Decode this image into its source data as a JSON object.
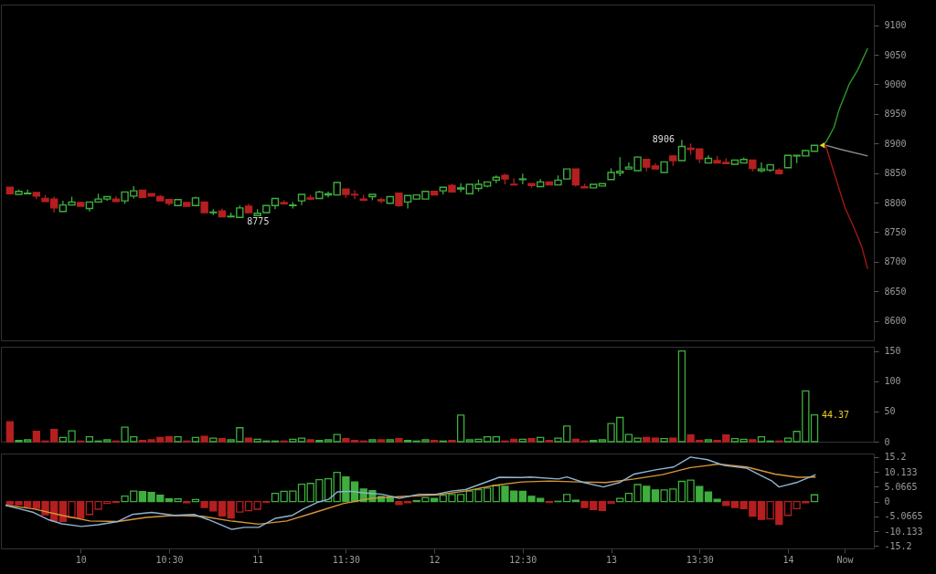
{
  "chart_data": [
    {
      "type": "candlestick",
      "tick_labels": "y",
      "xlim": [
        9.575,
        14.46
      ],
      "ylim": [
        8567,
        9135
      ],
      "yticks": [
        8600,
        8650,
        8700,
        8750,
        8800,
        8850,
        8900,
        8950,
        9000,
        9050,
        9100
      ],
      "x": [
        9.6,
        9.65,
        9.7,
        9.75,
        9.8,
        9.85,
        9.9,
        9.95,
        10,
        10.05,
        10.1,
        10.15,
        10.2,
        10.25,
        10.3,
        10.35,
        10.4,
        10.45,
        10.5,
        10.55,
        10.6,
        10.65,
        10.7,
        10.75,
        10.8,
        10.85,
        10.9,
        10.95,
        11,
        11.05,
        11.1,
        11.15,
        11.2,
        11.25,
        11.3,
        11.35,
        11.4,
        11.45,
        11.5,
        11.55,
        11.6,
        11.65,
        11.7,
        11.75,
        11.8,
        11.85,
        11.9,
        11.95,
        12,
        12.05,
        12.1,
        12.15,
        12.2,
        12.25,
        12.3,
        12.35,
        12.4,
        12.45,
        12.5,
        12.55,
        12.6,
        12.65,
        12.7,
        12.75,
        12.8,
        12.85,
        12.9,
        12.95,
        13,
        13.05,
        13.1,
        13.15,
        13.2,
        13.25,
        13.3,
        13.35,
        13.4,
        13.45,
        13.5,
        13.55,
        13.6,
        13.65,
        13.7,
        13.75,
        13.8,
        13.85,
        13.9,
        13.95,
        14,
        14.05,
        14.1,
        14.15
      ],
      "ohlc": [
        [
          8826,
          8826,
          8815,
          8815
        ],
        [
          8814,
          8822,
          8814,
          8819
        ],
        [
          8815,
          8822,
          8815,
          8816
        ],
        [
          8817,
          8817,
          8806,
          8811
        ],
        [
          8807,
          8813,
          8802,
          8802
        ],
        [
          8806,
          8810,
          8783,
          8791
        ],
        [
          8785,
          8803,
          8785,
          8796
        ],
        [
          8796,
          8810,
          8796,
          8801
        ],
        [
          8800,
          8802,
          8794,
          8794
        ],
        [
          8790,
          8801,
          8785,
          8801
        ],
        [
          8801,
          8815,
          8801,
          8806
        ],
        [
          8806,
          8810,
          8803,
          8810
        ],
        [
          8806,
          8811,
          8802,
          8802
        ],
        [
          8803,
          8818,
          8798,
          8818
        ],
        [
          8811,
          8828,
          8807,
          8820
        ],
        [
          8821,
          8821,
          8809,
          8809
        ],
        [
          8815,
          8815,
          8811,
          8811
        ],
        [
          8810,
          8813,
          8803,
          8803
        ],
        [
          8805,
          8805,
          8795,
          8799
        ],
        [
          8795,
          8805,
          8795,
          8805
        ],
        [
          8800,
          8800,
          8794,
          8794
        ],
        [
          8795,
          8810,
          8795,
          8808
        ],
        [
          8801,
          8801,
          8783,
          8783
        ],
        [
          8783,
          8789,
          8779,
          8784
        ],
        [
          8786,
          8790,
          8776,
          8776
        ],
        [
          8776,
          8783,
          8776,
          8777
        ],
        [
          8775,
          8795,
          8775,
          8791
        ],
        [
          8794,
          8798,
          8783,
          8783
        ],
        [
          8778,
          8789,
          8778,
          8782
        ],
        [
          8783,
          8795,
          8783,
          8795
        ],
        [
          8795,
          8807,
          8789,
          8807
        ],
        [
          8800,
          8804,
          8798,
          8798
        ],
        [
          8795,
          8801,
          8790,
          8796
        ],
        [
          8803,
          8814,
          8796,
          8814
        ],
        [
          8808,
          8813,
          8804,
          8806
        ],
        [
          8807,
          8820,
          8807,
          8818
        ],
        [
          8813,
          8819,
          8809,
          8815
        ],
        [
          8813,
          8834,
          8813,
          8834
        ],
        [
          8823,
          8823,
          8808,
          8814
        ],
        [
          8814,
          8821,
          8806,
          8813
        ],
        [
          8806,
          8813,
          8804,
          8804
        ],
        [
          8810,
          8814,
          8804,
          8814
        ],
        [
          8805,
          8808,
          8799,
          8803
        ],
        [
          8799,
          8810,
          8799,
          8810
        ],
        [
          8816,
          8816,
          8793,
          8795
        ],
        [
          8801,
          8812,
          8790,
          8812
        ],
        [
          8806,
          8813,
          8806,
          8813
        ],
        [
          8806,
          8819,
          8806,
          8819
        ],
        [
          8819,
          8819,
          8813,
          8813
        ],
        [
          8820,
          8826,
          8814,
          8826
        ],
        [
          8829,
          8832,
          8818,
          8818
        ],
        [
          8823,
          8833,
          8818,
          8825
        ],
        [
          8815,
          8831,
          8815,
          8831
        ],
        [
          8824,
          8839,
          8819,
          8831
        ],
        [
          8828,
          8835,
          8826,
          8835
        ],
        [
          8838,
          8846,
          8833,
          8843
        ],
        [
          8846,
          8849,
          8831,
          8840
        ],
        [
          8831,
          8841,
          8830,
          8830
        ],
        [
          8839,
          8849,
          8831,
          8840
        ],
        [
          8832,
          8832,
          8825,
          8829
        ],
        [
          8827,
          8840,
          8827,
          8835
        ],
        [
          8835,
          8835,
          8830,
          8830
        ],
        [
          8830,
          8846,
          8830,
          8838
        ],
        [
          8840,
          8857,
          8840,
          8857
        ],
        [
          8857,
          8857,
          8827,
          8830
        ],
        [
          8827,
          8832,
          8825,
          8825
        ],
        [
          8825,
          8831,
          8825,
          8831
        ],
        [
          8828,
          8832,
          8828,
          8832
        ],
        [
          8839,
          8858,
          8839,
          8851
        ],
        [
          8850,
          8877,
          8845,
          8853
        ],
        [
          8857,
          8868,
          8857,
          8860
        ],
        [
          8854,
          8878,
          8854,
          8877
        ],
        [
          8873,
          8873,
          8853,
          8860
        ],
        [
          8862,
          8867,
          8857,
          8857
        ],
        [
          8851,
          8869,
          8851,
          8869
        ],
        [
          8879,
          8879,
          8862,
          8871
        ],
        [
          8871,
          8906,
          8871,
          8895
        ],
        [
          8892,
          8900,
          8881,
          8890
        ],
        [
          8891,
          8891,
          8867,
          8874
        ],
        [
          8867,
          8880,
          8867,
          8875
        ],
        [
          8871,
          8879,
          8867,
          8867
        ],
        [
          8868,
          8875,
          8866,
          8866
        ],
        [
          8865,
          8872,
          8865,
          8872
        ],
        [
          8867,
          8876,
          8867,
          8873
        ],
        [
          8872,
          8872,
          8853,
          8858
        ],
        [
          8854,
          8868,
          8851,
          8857
        ],
        [
          8855,
          8864,
          8852,
          8864
        ],
        [
          8855,
          8858,
          8849,
          8849
        ],
        [
          8859,
          8880,
          8859,
          8880
        ],
        [
          8879,
          8880,
          8867,
          8880
        ],
        [
          8879,
          8888,
          8879,
          8888
        ],
        [
          8887,
          8897,
          8887,
          8897
        ]
      ],
      "colors": [
        "#b51f1f",
        "#3fae3f",
        "#3fae3f",
        "#b51f1f",
        "#b51f1f",
        "#b51f1f",
        "#3fae3f",
        "#3fae3f",
        "#b51f1f",
        "#3fae3f",
        "#3fae3f",
        "#3fae3f",
        "#b51f1f",
        "#3fae3f",
        "#3fae3f",
        "#b51f1f",
        "#b51f1f",
        "#b51f1f",
        "#b51f1f",
        "#3fae3f",
        "#b51f1f",
        "#3fae3f",
        "#b51f1f",
        "#3fae3f",
        "#b51f1f",
        "#3fae3f",
        "#3fae3f",
        "#b51f1f",
        "#3fae3f",
        "#3fae3f",
        "#3fae3f",
        "#b51f1f",
        "#3fae3f",
        "#3fae3f",
        "#b51f1f",
        "#3fae3f",
        "#3fae3f",
        "#3fae3f",
        "#b51f1f",
        "#b51f1f",
        "#b51f1f",
        "#3fae3f",
        "#b51f1f",
        "#3fae3f",
        "#b51f1f",
        "#3fae3f",
        "#3fae3f",
        "#3fae3f",
        "#b51f1f",
        "#3fae3f",
        "#b51f1f",
        "#3fae3f",
        "#3fae3f",
        "#3fae3f",
        "#3fae3f",
        "#3fae3f",
        "#b51f1f",
        "#b51f1f",
        "#3fae3f",
        "#b51f1f",
        "#3fae3f",
        "#b51f1f",
        "#3fae3f",
        "#3fae3f",
        "#b51f1f",
        "#b51f1f",
        "#3fae3f",
        "#3fae3f",
        "#3fae3f",
        "#3fae3f",
        "#3fae3f",
        "#3fae3f",
        "#b51f1f",
        "#b51f1f",
        "#3fae3f",
        "#b51f1f",
        "#3fae3f",
        "#b51f1f",
        "#b51f1f",
        "#3fae3f",
        "#b51f1f",
        "#b51f1f",
        "#3fae3f",
        "#3fae3f",
        "#b51f1f",
        "#3fae3f",
        "#3fae3f",
        "#b51f1f",
        "#3fae3f",
        "#3fae3f",
        "#3fae3f",
        "#3fae3f"
      ],
      "series": [
        {
          "type": "line",
          "x": [
            14.213,
            14.26,
            14.289,
            14.346,
            14.394,
            14.451
          ],
          "values": [
            8901,
            8927,
            8957,
            9000,
            9024,
            9061
          ],
          "color": "#2a9a2a"
        },
        {
          "type": "line",
          "x": [
            14.213,
            14.275,
            14.322,
            14.37,
            14.418,
            14.451
          ],
          "values": [
            8897,
            8837,
            8792,
            8760,
            8725,
            8688
          ],
          "color": "#a01818"
        },
        {
          "type": "line",
          "x": [
            14.213,
            14.299,
            14.451
          ],
          "values": [
            8897,
            8890,
            8879
          ],
          "color": "#8a8a8a"
        },
        {
          "type": "scatter",
          "marker": "triangle",
          "x": [
            14.194
          ],
          "values": [
            8897
          ],
          "color": "#e8d020"
        }
      ],
      "annotations": [
        {
          "text": "8906",
          "x": 13.4,
          "y": 8906
        },
        {
          "text": "8775",
          "x": 10.9,
          "y": 8775
        }
      ]
    },
    {
      "type": "bar",
      "tick_labels": "y",
      "xlim": [
        9.575,
        14.46
      ],
      "ylim": [
        0,
        157
      ],
      "yticks": [
        0,
        50,
        100,
        150
      ],
      "x": [
        9.6,
        9.65,
        9.7,
        9.75,
        9.8,
        9.85,
        9.9,
        9.95,
        10,
        10.05,
        10.1,
        10.15,
        10.2,
        10.25,
        10.3,
        10.35,
        10.4,
        10.45,
        10.5,
        10.55,
        10.6,
        10.65,
        10.7,
        10.75,
        10.8,
        10.85,
        10.9,
        10.95,
        11,
        11.05,
        11.1,
        11.15,
        11.2,
        11.25,
        11.3,
        11.35,
        11.4,
        11.45,
        11.5,
        11.55,
        11.6,
        11.65,
        11.7,
        11.75,
        11.8,
        11.85,
        11.9,
        11.95,
        12,
        12.05,
        12.1,
        12.15,
        12.2,
        12.25,
        12.3,
        12.35,
        12.4,
        12.45,
        12.5,
        12.55,
        12.6,
        12.65,
        12.7,
        12.75,
        12.8,
        12.85,
        12.9,
        12.95,
        13,
        13.05,
        13.1,
        13.15,
        13.2,
        13.25,
        13.3,
        13.35,
        13.4,
        13.45,
        13.5,
        13.55,
        13.6,
        13.65,
        13.7,
        13.75,
        13.8,
        13.85,
        13.9,
        13.95,
        14,
        14.05,
        14.1,
        14.15
      ],
      "values": [
        33,
        2,
        3,
        17,
        1,
        20,
        7,
        18,
        1,
        8,
        1,
        3,
        1,
        24,
        8,
        2,
        3,
        7,
        8,
        8,
        1,
        7,
        9,
        6,
        5,
        3,
        23,
        6,
        4,
        1,
        1,
        1,
        4,
        6,
        3,
        2,
        3,
        12,
        5,
        2,
        1,
        3,
        3,
        3,
        5,
        2,
        1,
        3,
        2,
        1,
        2,
        44,
        3,
        4,
        8,
        8,
        1,
        4,
        4,
        5,
        7,
        2,
        6,
        26,
        4,
        1,
        2,
        3,
        30,
        40,
        12,
        6,
        7,
        6,
        5,
        6,
        150,
        11,
        2,
        3,
        2,
        11,
        5,
        4,
        3,
        8,
        1,
        1,
        6,
        17,
        84,
        44.37
      ],
      "colors": [
        "#b51f1f",
        "#3fae3f",
        "#3fae3f",
        "#b51f1f",
        "#b51f1f",
        "#b51f1f",
        "#3fae3f",
        "#3fae3f",
        "#b51f1f",
        "#3fae3f",
        "#3fae3f",
        "#3fae3f",
        "#b51f1f",
        "#3fae3f",
        "#3fae3f",
        "#b51f1f",
        "#b51f1f",
        "#b51f1f",
        "#b51f1f",
        "#3fae3f",
        "#b51f1f",
        "#3fae3f",
        "#b51f1f",
        "#3fae3f",
        "#b51f1f",
        "#3fae3f",
        "#3fae3f",
        "#b51f1f",
        "#3fae3f",
        "#3fae3f",
        "#3fae3f",
        "#b51f1f",
        "#3fae3f",
        "#3fae3f",
        "#b51f1f",
        "#3fae3f",
        "#3fae3f",
        "#3fae3f",
        "#b51f1f",
        "#b51f1f",
        "#b51f1f",
        "#3fae3f",
        "#b51f1f",
        "#3fae3f",
        "#b51f1f",
        "#3fae3f",
        "#3fae3f",
        "#3fae3f",
        "#b51f1f",
        "#3fae3f",
        "#b51f1f",
        "#3fae3f",
        "#3fae3f",
        "#3fae3f",
        "#3fae3f",
        "#3fae3f",
        "#b51f1f",
        "#b51f1f",
        "#3fae3f",
        "#b51f1f",
        "#3fae3f",
        "#b51f1f",
        "#3fae3f",
        "#3fae3f",
        "#b51f1f",
        "#b51f1f",
        "#3fae3f",
        "#3fae3f",
        "#3fae3f",
        "#3fae3f",
        "#3fae3f",
        "#3fae3f",
        "#b51f1f",
        "#b51f1f",
        "#3fae3f",
        "#b51f1f",
        "#3fae3f",
        "#b51f1f",
        "#b51f1f",
        "#3fae3f",
        "#b51f1f",
        "#b51f1f",
        "#3fae3f",
        "#3fae3f",
        "#b51f1f",
        "#3fae3f",
        "#3fae3f",
        "#b51f1f",
        "#3fae3f",
        "#3fae3f",
        "#3fae3f",
        "#3fae3f"
      ],
      "annotations": [
        {
          "text": "44.37",
          "x": 14.15,
          "y": 44.37
        }
      ]
    },
    {
      "type": "bar",
      "xlim": [
        9.575,
        14.46
      ],
      "ylim": [
        -16,
        16.4
      ],
      "yticks": [
        15.2,
        10.133,
        5.0665,
        0,
        -5.0665,
        -10.133,
        -15.2
      ],
      "xticks": [
        10,
        {
          "value": 10.5,
          "label": "10:30"
        },
        11,
        {
          "value": 11.5,
          "label": "11:30"
        },
        12,
        {
          "value": 12.5,
          "label": "12:30"
        },
        13,
        {
          "value": 13.5,
          "label": "13:30"
        },
        14,
        {
          "value": 14.32,
          "label": "Now"
        }
      ],
      "x": [
        9.6,
        9.65,
        9.7,
        9.75,
        9.8,
        9.85,
        9.9,
        9.95,
        10,
        10.05,
        10.1,
        10.15,
        10.2,
        10.25,
        10.3,
        10.35,
        10.4,
        10.45,
        10.5,
        10.55,
        10.6,
        10.65,
        10.7,
        10.75,
        10.8,
        10.85,
        10.9,
        10.95,
        11,
        11.05,
        11.1,
        11.15,
        11.2,
        11.25,
        11.3,
        11.35,
        11.4,
        11.45,
        11.5,
        11.55,
        11.6,
        11.65,
        11.7,
        11.75,
        11.8,
        11.85,
        11.9,
        11.95,
        12,
        12.05,
        12.1,
        12.15,
        12.2,
        12.25,
        12.3,
        12.35,
        12.4,
        12.45,
        12.5,
        12.55,
        12.6,
        12.65,
        12.7,
        12.75,
        12.8,
        12.85,
        12.9,
        12.95,
        13,
        13.05,
        13.1,
        13.15,
        13.2,
        13.25,
        13.3,
        13.35,
        13.4,
        13.45,
        13.5,
        13.55,
        13.6,
        13.65,
        13.7,
        13.75,
        13.8,
        13.85,
        13.9,
        13.95,
        14,
        14.05,
        14.1,
        14.15
      ],
      "series": [
        {
          "type": "bar",
          "values": [
            -0.9,
            -1.1,
            -1.8,
            -2.3,
            -4.5,
            -6.6,
            -6.8,
            -5.4,
            -5.7,
            -4.4,
            -2.6,
            -0.6,
            -0.3,
            1.9,
            3.6,
            3.4,
            3.1,
            2.2,
            0.9,
            0.9,
            -0.4,
            0.7,
            -2,
            -3.2,
            -4.9,
            -5.6,
            -3.6,
            -3.1,
            -2.6,
            -0.2,
            2.8,
            3.5,
            3.6,
            5.9,
            6.2,
            7.5,
            7.8,
            10,
            8.4,
            6.7,
            4.3,
            3.7,
            1.8,
            1.7,
            -1,
            -0.4,
            0.3,
            1.3,
            1.1,
            2.1,
            2.4,
            2.4,
            3.6,
            4.1,
            4.6,
            5.5,
            5.2,
            3.6,
            3.5,
            1.8,
            1.1,
            -0.3,
            0.1,
            2.4,
            0.5,
            -2,
            -2.7,
            -3,
            -0.5,
            1.1,
            2.8,
            5.8,
            5.2,
            4,
            4,
            4.3,
            6.9,
            7.3,
            5.1,
            3.3,
            0.8,
            -1.3,
            -2,
            -2.4,
            -5,
            -6.1,
            -5.9,
            -7.8,
            -4.7,
            -2.4,
            -0.4,
            2.3
          ],
          "colors": [
            "#b51f1f",
            "#b51f1f",
            "#b51f1f",
            "#b51f1f",
            "#b51f1f",
            "#b51f1f",
            "#b51f1f",
            "#b51f1f",
            "#b51f1f",
            "#b51f1f",
            "#b51f1f",
            "#b51f1f",
            "#b51f1f",
            "#3fae3f",
            "#3fae3f",
            "#3fae3f",
            "#3fae3f",
            "#3fae3f",
            "#3fae3f",
            "#3fae3f",
            "#b51f1f",
            "#3fae3f",
            "#b51f1f",
            "#b51f1f",
            "#b51f1f",
            "#b51f1f",
            "#b51f1f",
            "#b51f1f",
            "#b51f1f",
            "#b51f1f",
            "#3fae3f",
            "#3fae3f",
            "#3fae3f",
            "#3fae3f",
            "#3fae3f",
            "#3fae3f",
            "#3fae3f",
            "#3fae3f",
            "#3fae3f",
            "#3fae3f",
            "#3fae3f",
            "#3fae3f",
            "#3fae3f",
            "#3fae3f",
            "#b51f1f",
            "#b51f1f",
            "#3fae3f",
            "#3fae3f",
            "#3fae3f",
            "#3fae3f",
            "#3fae3f",
            "#3fae3f",
            "#3fae3f",
            "#3fae3f",
            "#3fae3f",
            "#3fae3f",
            "#3fae3f",
            "#3fae3f",
            "#3fae3f",
            "#3fae3f",
            "#3fae3f",
            "#b51f1f",
            "#3fae3f",
            "#3fae3f",
            "#3fae3f",
            "#b51f1f",
            "#b51f1f",
            "#b51f1f",
            "#b51f1f",
            "#3fae3f",
            "#3fae3f",
            "#3fae3f",
            "#3fae3f",
            "#3fae3f",
            "#3fae3f",
            "#3fae3f",
            "#3fae3f",
            "#3fae3f",
            "#3fae3f",
            "#3fae3f",
            "#3fae3f",
            "#b51f1f",
            "#b51f1f",
            "#b51f1f",
            "#b51f1f",
            "#b51f1f",
            "#b51f1f",
            "#b51f1f",
            "#b51f1f",
            "#b51f1f",
            "#b51f1f",
            "#3fae3f"
          ]
        },
        {
          "type": "line",
          "color": "#8fb4d2",
          "x": [
            9.575,
            9.655,
            9.734,
            9.814,
            9.894,
            10.005,
            10.1,
            10.211,
            10.291,
            10.402,
            10.53,
            10.641,
            10.72,
            10.8,
            10.855,
            10.927,
            11.007,
            11.102,
            11.198,
            11.261,
            11.341,
            11.404,
            11.452,
            11.531,
            11.595,
            11.707,
            11.802,
            11.913,
            12.009,
            12.098,
            12.177,
            12.368,
            12.495,
            12.543,
            12.702,
            12.75,
            12.845,
            12.956,
            13.052,
            13.131,
            13.258,
            13.354,
            13.449,
            13.545,
            13.64,
            13.767,
            13.863,
            13.91,
            13.95,
            14.054,
            14.157
          ],
          "values": [
            -1.3,
            -2.5,
            -3.7,
            -6.1,
            -7.6,
            -8.5,
            -7.9,
            -6.8,
            -4.4,
            -3.7,
            -4.7,
            -4.4,
            -6.1,
            -8.1,
            -9.5,
            -8.8,
            -8.8,
            -5.7,
            -4.7,
            -2.5,
            -0.2,
            0.8,
            3.3,
            3.5,
            3,
            2.5,
            1.1,
            2.5,
            2.5,
            3.6,
            4.1,
            8.3,
            8.2,
            8.4,
            7.7,
            8.4,
            6.5,
            5,
            6.6,
            9.4,
            10.9,
            11.8,
            15.2,
            14.3,
            12.3,
            11.4,
            8.4,
            7,
            5,
            6.6,
            9.2
          ]
        },
        {
          "type": "line",
          "color": "#d8953a",
          "x": [
            9.575,
            9.734,
            9.894,
            10.052,
            10.211,
            10.37,
            10.53,
            10.689,
            10.848,
            11.007,
            11.166,
            11.325,
            11.484,
            11.643,
            11.802,
            12.018,
            12.177,
            12.336,
            12.495,
            12.654,
            12.813,
            12.972,
            13.131,
            13.29,
            13.449,
            13.608,
            13.767,
            13.926,
            14.054,
            14.157
          ],
          "values": [
            -1.2,
            -2.5,
            -4.7,
            -6.6,
            -6.8,
            -5.4,
            -4.7,
            -5,
            -6.6,
            -7.7,
            -6.6,
            -3.7,
            -0.7,
            1.1,
            1.7,
            2.3,
            3.6,
            5.5,
            6.7,
            7,
            6.7,
            6.5,
            7.7,
            9.2,
            11.6,
            12.8,
            11.8,
            9.4,
            8.3,
            8.4
          ]
        }
      ]
    }
  ]
}
